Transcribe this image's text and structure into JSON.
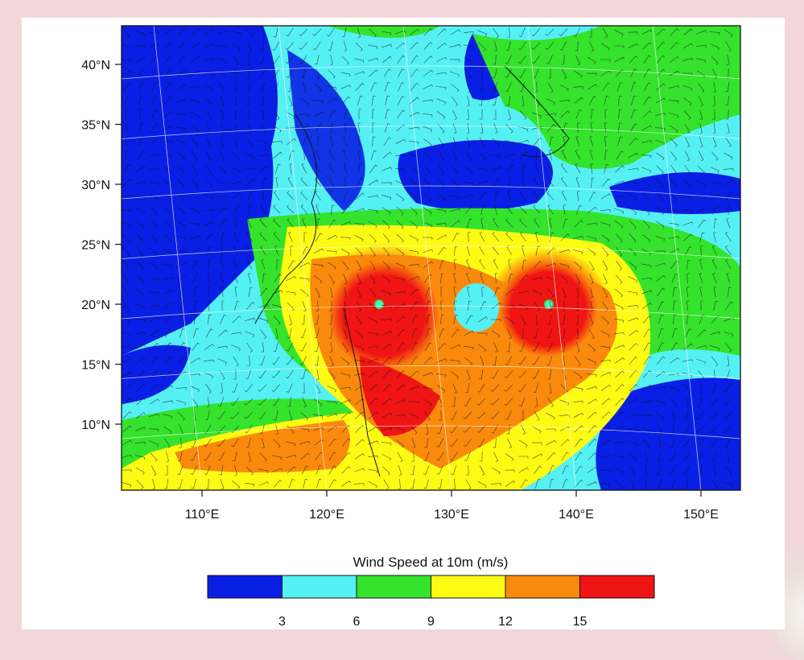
{
  "map": {
    "lon_labels": [
      "110°E",
      "120°E",
      "130°E",
      "140°E",
      "150°E"
    ],
    "lat_labels": [
      "40°N",
      "35°N",
      "30°N",
      "25°N",
      "20°N",
      "15°N",
      "10°N"
    ],
    "lon_values": [
      110,
      120,
      130,
      140,
      150
    ],
    "lat_values": [
      40,
      35,
      30,
      25,
      20,
      15,
      10
    ]
  },
  "colorbar": {
    "title": "Wind Speed at 10m  (m/s)",
    "tick_labels": [
      "3",
      "6",
      "9",
      "12",
      "15"
    ],
    "colors": [
      "#0a1fe6",
      "#55f0f4",
      "#35e22c",
      "#fdfb14",
      "#fa8a0c",
      "#f01414"
    ]
  },
  "cyclones": [
    {
      "lon": 124.2,
      "lat": 20.0
    },
    {
      "lon": 137.8,
      "lat": 20.0
    }
  ]
}
